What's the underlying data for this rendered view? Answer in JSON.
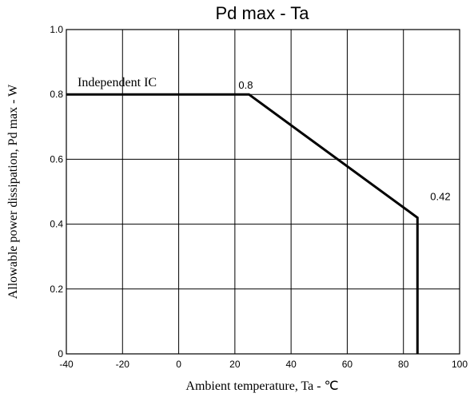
{
  "chart_data": {
    "type": "line",
    "title": "Pd max - Ta",
    "xlabel": "Ambient temperature, Ta - ℃",
    "ylabel": "Allowable power dissipation, Pd max - W",
    "xlim": [
      -40,
      100
    ],
    "ylim": [
      0,
      1.0
    ],
    "x_ticks": [
      -40,
      -20,
      0,
      20,
      40,
      60,
      80,
      100
    ],
    "x_tick_labels": [
      "-40",
      "-20",
      "0",
      "20",
      "40",
      "60",
      "80",
      "100"
    ],
    "y_ticks": [
      0,
      0.2,
      0.4,
      0.6,
      0.8,
      1.0
    ],
    "y_tick_labels": [
      "0",
      "0.2",
      "0.4",
      "0.6",
      "0.8",
      "1.0"
    ],
    "grid": true,
    "series": [
      {
        "name": "Independent IC",
        "x": [
          -40,
          25,
          85,
          85
        ],
        "y": [
          0.8,
          0.8,
          0.42,
          0
        ]
      }
    ],
    "annotations": [
      {
        "text": "0.8",
        "x": 25,
        "y": 0.8
      },
      {
        "text": "0.42",
        "x": 85,
        "y": 0.42
      }
    ]
  }
}
